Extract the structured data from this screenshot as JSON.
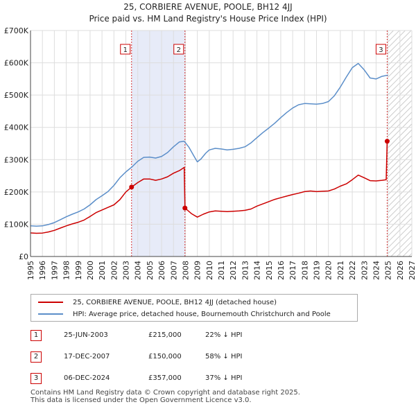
{
  "title": {
    "line1": "25, CORBIERE AVENUE, POOLE, BH12 4JJ",
    "line2": "Price paid vs. HM Land Registry's House Price Index (HPI)"
  },
  "chart_data": {
    "type": "line",
    "xlabel": "",
    "ylabel": "",
    "xlim": [
      1995,
      2027
    ],
    "ylim": [
      0,
      700000
    ],
    "x_ticks": [
      1995,
      1996,
      1997,
      1998,
      1999,
      2000,
      2001,
      2002,
      2003,
      2004,
      2005,
      2006,
      2007,
      2008,
      2009,
      2010,
      2011,
      2012,
      2013,
      2014,
      2015,
      2016,
      2017,
      2018,
      2019,
      2020,
      2021,
      2022,
      2023,
      2024,
      2025,
      2026,
      2027
    ],
    "y_ticks": [
      {
        "value": 0,
        "label": "£0"
      },
      {
        "value": 100000,
        "label": "£100K"
      },
      {
        "value": 200000,
        "label": "£200K"
      },
      {
        "value": 300000,
        "label": "£300K"
      },
      {
        "value": 400000,
        "label": "£400K"
      },
      {
        "value": 500000,
        "label": "£500K"
      },
      {
        "value": 600000,
        "label": "£600K"
      },
      {
        "value": 700000,
        "label": "£700K"
      }
    ],
    "grid": true,
    "shaded_periods": [
      {
        "from": 2003.48,
        "to": 2007.96
      }
    ],
    "future_hatch_from": 2025.0,
    "series": [
      {
        "name": "25, CORBIERE AVENUE, POOLE, BH12 4JJ (detached house)",
        "color": "#cc0000",
        "x": [
          1995,
          1995.5,
          1996,
          1996.5,
          1997,
          1997.5,
          1998,
          1998.5,
          1999,
          1999.5,
          2000,
          2000.5,
          2001,
          2001.5,
          2002,
          2002.5,
          2003,
          2003.48,
          2004,
          2004.5,
          2005,
          2005.5,
          2006,
          2006.5,
          2007,
          2007.5,
          2007.9,
          2007.96,
          2008.5,
          2009,
          2009.5,
          2010,
          2010.5,
          2011,
          2011.5,
          2012,
          2012.5,
          2013,
          2013.5,
          2014,
          2014.5,
          2015,
          2015.5,
          2016,
          2016.5,
          2017,
          2017.5,
          2018,
          2018.5,
          2019,
          2019.5,
          2020,
          2020.5,
          2021,
          2021.5,
          2022,
          2022.5,
          2023,
          2023.5,
          2024,
          2024.5,
          2024.85,
          2024.93,
          2025.0
        ],
        "y": [
          73000,
          72000,
          72500,
          76000,
          81000,
          88000,
          95000,
          101000,
          106000,
          113000,
          124000,
          136000,
          144000,
          152000,
          160000,
          176000,
          200000,
          215000,
          229000,
          240000,
          240000,
          236000,
          240000,
          247000,
          258000,
          266000,
          276000,
          150000,
          133000,
          122000,
          131000,
          138000,
          141000,
          140000,
          139000,
          140000,
          141000,
          143000,
          147000,
          156000,
          163000,
          170000,
          177000,
          182000,
          187000,
          192000,
          196000,
          201000,
          203000,
          201000,
          202000,
          203000,
          209000,
          218000,
          225000,
          238000,
          252000,
          244000,
          235000,
          234000,
          236000,
          238000,
          357000,
          355000
        ]
      },
      {
        "name": "HPI: Average price, detached house, Bournemouth Christchurch and Poole",
        "color": "#5b8ec9",
        "x": [
          1995,
          1995.5,
          1996,
          1996.5,
          1997,
          1997.5,
          1998,
          1998.5,
          1999,
          1999.5,
          2000,
          2000.5,
          2001,
          2001.5,
          2002,
          2002.5,
          2003,
          2003.5,
          2004,
          2004.5,
          2005,
          2005.5,
          2006,
          2006.5,
          2007,
          2007.5,
          2007.9,
          2008.3,
          2008.7,
          2009,
          2009.3,
          2009.7,
          2010,
          2010.5,
          2011,
          2011.5,
          2012,
          2012.5,
          2013,
          2013.5,
          2014,
          2014.5,
          2015,
          2015.5,
          2016,
          2016.5,
          2017,
          2017.5,
          2018,
          2018.5,
          2019,
          2019.5,
          2020,
          2020.5,
          2021,
          2021.5,
          2022,
          2022.5,
          2023,
          2023.5,
          2024,
          2024.5,
          2025.0
        ],
        "y": [
          95000,
          94000,
          95000,
          99000,
          105000,
          114000,
          123000,
          131000,
          138000,
          147000,
          160000,
          176000,
          188000,
          201000,
          220000,
          244000,
          262000,
          277000,
          295000,
          307000,
          308000,
          305000,
          310000,
          322000,
          340000,
          355000,
          357000,
          338000,
          312000,
          293000,
          302000,
          320000,
          330000,
          335000,
          333000,
          330000,
          332000,
          335000,
          340000,
          352000,
          368000,
          384000,
          398000,
          413000,
          430000,
          446000,
          460000,
          470000,
          474000,
          473000,
          472000,
          474000,
          480000,
          498000,
          525000,
          556000,
          585000,
          598000,
          578000,
          553000,
          550000,
          558000,
          562000
        ]
      }
    ],
    "markers": [
      {
        "id": "1",
        "x": 2003.48,
        "y": 215000
      },
      {
        "id": "2",
        "x": 2007.96,
        "y": 150000
      },
      {
        "id": "3",
        "x": 2024.93,
        "y": 357000
      }
    ]
  },
  "legend": {
    "property_label": "25, CORBIERE AVENUE, POOLE, BH12 4JJ (detached house)",
    "hpi_label": "HPI: Average price, detached house, Bournemouth Christchurch and Poole",
    "property_color": "#cc0000",
    "hpi_color": "#5b8ec9"
  },
  "transactions": [
    {
      "num": "1",
      "date": "25-JUN-2003",
      "price": "£215,000",
      "hpi": "22% ↓ HPI"
    },
    {
      "num": "2",
      "date": "17-DEC-2007",
      "price": "£150,000",
      "hpi": "58% ↓ HPI"
    },
    {
      "num": "3",
      "date": "06-DEC-2024",
      "price": "£357,000",
      "hpi": "37% ↓ HPI"
    }
  ],
  "footer": {
    "line1": "Contains HM Land Registry data © Crown copyright and database right 2025.",
    "line2": "This data is licensed under the Open Government Licence v3.0."
  }
}
